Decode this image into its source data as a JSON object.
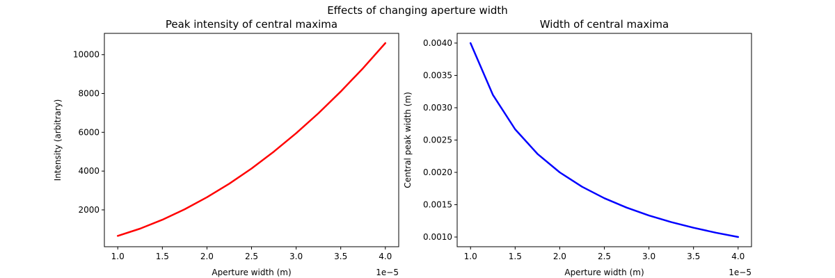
{
  "suptitle": "Effects of changing aperture width",
  "chart_data": [
    {
      "type": "line",
      "title": "Peak intensity of central maxima",
      "xlabel": "Aperture width (m)",
      "ylabel": "Intensity (arbitrary)",
      "x_offset_text": "1e−5",
      "xlim": [
        0.85,
        4.15
      ],
      "ylim": [
        100,
        11100
      ],
      "xticks": [
        1.0,
        1.5,
        2.0,
        2.5,
        3.0,
        3.5,
        4.0
      ],
      "xtick_labels": [
        "1.0",
        "1.5",
        "2.0",
        "2.5",
        "3.0",
        "3.5",
        "4.0"
      ],
      "yticks": [
        2000,
        4000,
        6000,
        8000,
        10000
      ],
      "ytick_labels": [
        "2000",
        "4000",
        "6000",
        "8000",
        "10000"
      ],
      "grid": false,
      "series": [
        {
          "color": "#ff0000",
          "x": [
            1.0,
            1.25,
            1.5,
            1.75,
            2.0,
            2.25,
            2.5,
            2.75,
            3.0,
            3.25,
            3.5,
            3.75,
            4.0
          ],
          "y": [
            660,
            1030,
            1490,
            2030,
            2650,
            3350,
            4130,
            5000,
            5950,
            6980,
            8100,
            9300,
            10600
          ]
        }
      ]
    },
    {
      "type": "line",
      "title": "Width of central maxima",
      "xlabel": "Aperture width (m)",
      "ylabel": "Central peak width (m)",
      "x_offset_text": "1e−5",
      "xlim": [
        0.85,
        4.15
      ],
      "ylim": [
        0.00085,
        0.00415
      ],
      "xticks": [
        1.0,
        1.5,
        2.0,
        2.5,
        3.0,
        3.5,
        4.0
      ],
      "xtick_labels": [
        "1.0",
        "1.5",
        "2.0",
        "2.5",
        "3.0",
        "3.5",
        "4.0"
      ],
      "yticks": [
        0.001,
        0.0015,
        0.002,
        0.0025,
        0.003,
        0.0035,
        0.004
      ],
      "ytick_labels": [
        "0.0010",
        "0.0015",
        "0.0020",
        "0.0025",
        "0.0030",
        "0.0035",
        "0.0040"
      ],
      "grid": false,
      "series": [
        {
          "color": "#0000ff",
          "x": [
            1.0,
            1.25,
            1.5,
            1.75,
            2.0,
            2.25,
            2.5,
            2.75,
            3.0,
            3.25,
            3.5,
            3.75,
            4.0
          ],
          "y": [
            0.004,
            0.0032,
            0.002667,
            0.002286,
            0.002,
            0.001778,
            0.0016,
            0.001455,
            0.001333,
            0.001231,
            0.001143,
            0.001067,
            0.001
          ]
        }
      ]
    }
  ]
}
